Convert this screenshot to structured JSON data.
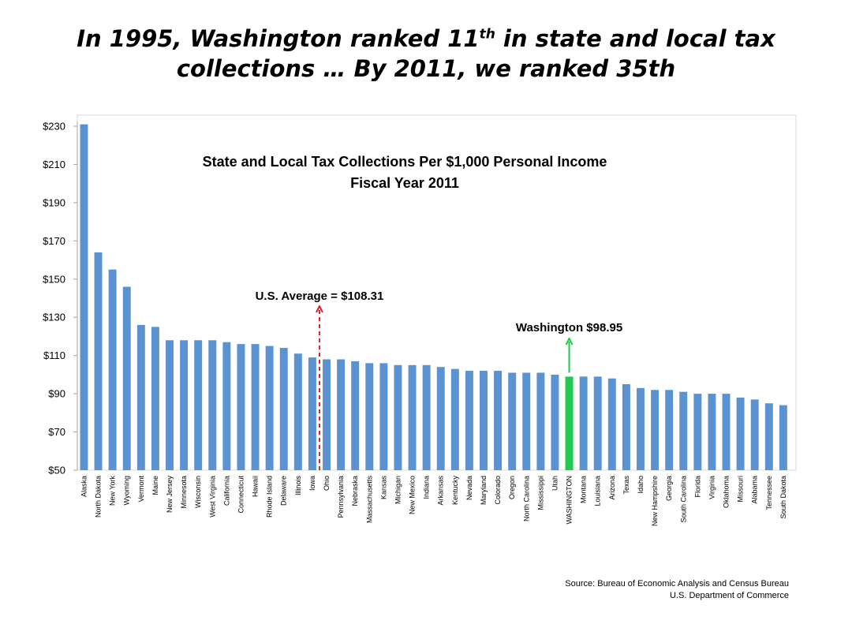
{
  "slide": {
    "title_part1": "In 1995, Washington ranked 11",
    "title_sup": "th",
    "title_part2": " in state and local tax",
    "title_line2": "collections … By 2011, we ranked 35th"
  },
  "source": {
    "line1": "Source: Bureau of Economic Analysis and Census Bureau",
    "line2": "U.S. Department of Commerce"
  },
  "colors": {
    "bar": "#5b93d2",
    "highlight_bar": "#1ecb4f",
    "average_arrow": "#e21f26",
    "washington_arrow": "#1ecb4f",
    "axis": "#a6a6a6"
  },
  "chart_data": {
    "type": "bar",
    "title": "State and Local Tax Collections Per $1,000 Personal Income",
    "subtitle": "Fiscal Year 2011",
    "xlabel": "",
    "ylabel": "",
    "ylim": [
      50,
      230
    ],
    "yticks": [
      50,
      70,
      90,
      110,
      130,
      150,
      170,
      190,
      210,
      230
    ],
    "ytick_labels": [
      "$50",
      "$70",
      "$90",
      "$110",
      "$130",
      "$150",
      "$170",
      "$190",
      "$210",
      "$230"
    ],
    "grid": false,
    "categories": [
      "Alaska",
      "North Dakota",
      "New York",
      "Wyoming",
      "Vermont",
      "Maine",
      "New Jersey",
      "Minnesota",
      "Wisconsin",
      "West Virginia",
      "California",
      "Connecticut",
      "Hawaii",
      "Rhode Island",
      "Delaware",
      "Illinois",
      "Iowa",
      "Ohio",
      "Pennsylvania",
      "Nebraska",
      "Massachusetts",
      "Kansas",
      "Michigan",
      "New Mexico",
      "Indiana",
      "Arkansas",
      "Kentucky",
      "Nevada",
      "Maryland",
      "Colorado",
      "Oregon",
      "North Carolina",
      "Mississippi",
      "Utah",
      "WASHINGTON",
      "Montana",
      "Louisiana",
      "Arizona",
      "Texas",
      "Idaho",
      "New Hampshire",
      "Georgia",
      "South Carolina",
      "Florida",
      "Virginia",
      "Oklahoma",
      "Missouri",
      "Alabama",
      "Tennessee",
      "South Dakota"
    ],
    "values": [
      231,
      164,
      155,
      146,
      126,
      125,
      118,
      118,
      118,
      118,
      117,
      116,
      116,
      115,
      114,
      111,
      109,
      108,
      108,
      107,
      106,
      106,
      105,
      105,
      105,
      104,
      103,
      102,
      102,
      102,
      101,
      101,
      101,
      100,
      98.95,
      99,
      99,
      98,
      95,
      93,
      92,
      92,
      91,
      90,
      90,
      90,
      88,
      87,
      85,
      84
    ],
    "highlight_category": "WASHINGTON",
    "annotations": [
      {
        "text": "U.S. Average = $108.31",
        "value": 108.31,
        "between": [
          "Iowa",
          "Ohio"
        ],
        "style": "dashed-arrow"
      },
      {
        "text": "Washington $98.95",
        "value": 98.95,
        "category": "WASHINGTON",
        "style": "solid-arrow"
      }
    ]
  }
}
